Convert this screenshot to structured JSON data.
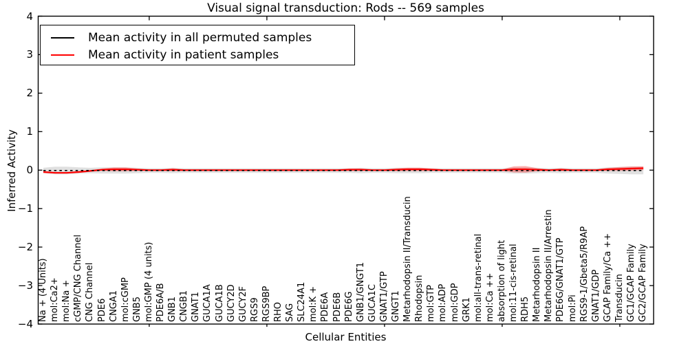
{
  "figure": {
    "title": "Visual signal transduction: Rods -- 569 samples",
    "xlabel": "Cellular Entities",
    "ylabel": "Inferred Activity"
  },
  "legend": {
    "entries": [
      {
        "label": "Mean activity in all permuted samples",
        "color": "#000000"
      },
      {
        "label": "Mean activity in patient samples",
        "color": "#ff0000"
      }
    ]
  },
  "colors": {
    "patient": "#ff0000",
    "permuted": "#000000",
    "permuted_band": "#d8d8d8",
    "axes": "#000000"
  },
  "chart_data": {
    "type": "line",
    "title": "Visual signal transduction: Rods -- 569 samples",
    "xlabel": "Cellular Entities",
    "ylabel": "Inferred Activity",
    "ylim": [
      -4,
      4
    ],
    "y_ticks": [
      4,
      3,
      2,
      1,
      0,
      -1,
      -2,
      -3,
      -4
    ],
    "y_tick_labels": [
      "4",
      "3",
      "2",
      "1",
      "0",
      "−1",
      "−2",
      "−3",
      "−4"
    ],
    "x_major_tick_positions": [
      10,
      20,
      30,
      40,
      50
    ],
    "grid": false,
    "legend_position": "upper left",
    "categories": [
      "Na + (4 Units)",
      "mol:Ca2+",
      "mol:Na +",
      "cGMP/CNG Channel",
      "CNG Channel",
      "PDE6",
      "CNGA1",
      "mol:cGMP",
      "GNB5",
      "mol:GMP (4 units)",
      "PDE6A/B",
      "GNB1",
      "CNGB1",
      "GNAT1",
      "GUCA1A",
      "GUCA1B",
      "GUCY2D",
      "GUCY2F",
      "RGS9",
      "RGS9BP",
      "RHO",
      "SAG",
      "SLC24A1",
      "mol:K +",
      "PDE6A",
      "PDE6B",
      "PDE6G",
      "GNB1/GNGT1",
      "GUCA1C",
      "GNAT1/GTP",
      "GNGT1",
      "Metarhodopsin II/Transducin",
      "Rhodopsin",
      "mol:GTP",
      "mol:ADP",
      "mol:GDP",
      "GRK1",
      "mol:all-trans-retinal",
      "mol:Ca ++",
      "absorption of light",
      "mol:11-cis-retinal",
      "RDH5",
      "Metarhodopsin II",
      "Metarhodopsin II/Arrestin",
      "PDE6G/GNAT1/GTP",
      "mol:Pi",
      "RGS9-1/Gbeta5/R9AP",
      "GNAT1/GDP",
      "GCAP Family/Ca ++",
      "Transducin",
      "GC1/GCAP Family",
      "GC2/GCAP Family"
    ],
    "series": [
      {
        "name": "Mean activity in all permuted samples",
        "color": "#000000",
        "style": "dashed",
        "values": [
          -0.01,
          -0.01,
          -0.01,
          -0.01,
          -0.01,
          -0.01,
          -0.01,
          -0.01,
          -0.01,
          -0.01,
          -0.01,
          -0.01,
          -0.01,
          -0.01,
          -0.01,
          -0.01,
          -0.01,
          -0.01,
          -0.01,
          -0.01,
          -0.01,
          -0.01,
          -0.01,
          -0.01,
          -0.01,
          -0.01,
          -0.01,
          -0.01,
          -0.01,
          -0.01,
          -0.01,
          -0.01,
          -0.01,
          -0.01,
          -0.01,
          -0.01,
          -0.01,
          -0.01,
          -0.01,
          -0.01,
          -0.01,
          -0.01,
          -0.01,
          -0.01,
          -0.01,
          -0.01,
          -0.01,
          -0.01,
          -0.01,
          -0.01,
          -0.01,
          -0.01
        ]
      },
      {
        "name": "Mean activity in patient samples",
        "color": "#ff0000",
        "style": "solid",
        "values": [
          -0.05,
          -0.07,
          -0.07,
          -0.05,
          -0.02,
          0.01,
          0.02,
          0.02,
          0.01,
          0,
          0,
          0.01,
          0,
          0,
          0,
          0,
          0,
          0,
          0,
          0,
          0,
          0,
          0,
          0,
          0,
          0,
          0.01,
          0.01,
          0,
          0,
          0.01,
          0.02,
          0.02,
          0.01,
          0,
          0,
          0,
          0,
          0,
          0,
          0.02,
          0.02,
          0.01,
          0,
          0.01,
          0,
          0,
          0,
          0.02,
          0.03,
          0.04,
          0.05
        ]
      }
    ],
    "bands": [
      {
        "name": "permuted-samples-spread",
        "center_series": 0,
        "color": "#d8d8d8",
        "opacity": 0.8,
        "half_widths": [
          0.07,
          0.1,
          0.1,
          0.08,
          0.07,
          0.08,
          0.08,
          0.08,
          0.07,
          0.06,
          0.06,
          0.07,
          0.06,
          0.06,
          0.06,
          0.06,
          0.06,
          0.06,
          0.06,
          0.06,
          0.06,
          0.06,
          0.06,
          0.06,
          0.06,
          0.06,
          0.06,
          0.07,
          0.06,
          0.06,
          0.07,
          0.07,
          0.07,
          0.06,
          0.06,
          0.06,
          0.06,
          0.06,
          0.06,
          0.06,
          0.08,
          0.08,
          0.07,
          0.06,
          0.07,
          0.06,
          0.06,
          0.06,
          0.08,
          0.09,
          0.1,
          0.1
        ]
      },
      {
        "name": "patient-samples-spread",
        "center_series": 1,
        "color": "#ff0000",
        "opacity": 0.3,
        "half_widths": [
          0.02,
          0.02,
          0.02,
          0.02,
          0.02,
          0.03,
          0.05,
          0.05,
          0.03,
          0.02,
          0.02,
          0.04,
          0.02,
          0.02,
          0.02,
          0.02,
          0.02,
          0.02,
          0.02,
          0.02,
          0.02,
          0.02,
          0.02,
          0.02,
          0.02,
          0.02,
          0.035,
          0.035,
          0.02,
          0.02,
          0.04,
          0.045,
          0.045,
          0.035,
          0.02,
          0.02,
          0.02,
          0.02,
          0.02,
          0.02,
          0.08,
          0.085,
          0.04,
          0.02,
          0.035,
          0.02,
          0.02,
          0.02,
          0.04,
          0.05,
          0.055,
          0.05
        ]
      }
    ]
  }
}
